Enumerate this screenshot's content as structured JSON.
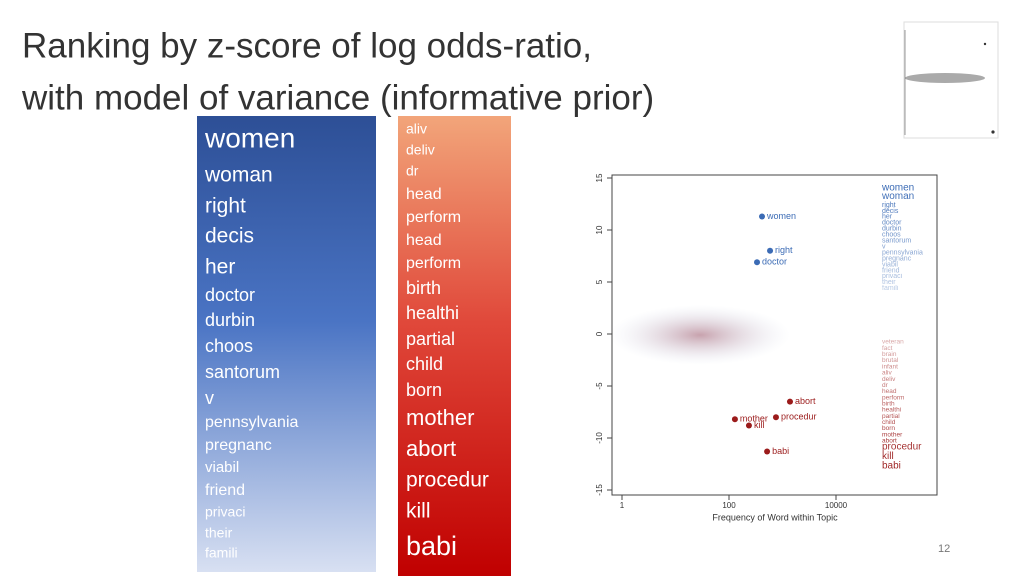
{
  "slide": {
    "title_lines": [
      "Ranking by z-score of log odds-ratio,",
      "with model of variance (informative prior)"
    ],
    "columns": [
      {
        "words": [
          "women",
          "woman",
          "right",
          "decis",
          "her",
          "doctor",
          "durbin",
          "choos",
          "santorum",
          "v",
          "pennsylvania",
          "pregnanc",
          "viabil",
          "friend",
          "privaci",
          "their",
          "famili"
        ]
      },
      {
        "words": [
          "aliv",
          "deliv",
          "dr",
          "head",
          "perform",
          "head",
          "perform",
          "birth",
          "healthi",
          "partial",
          "child",
          "born",
          "mother",
          "abort",
          "procedur",
          "kill",
          "babi"
        ]
      }
    ],
    "plot": {
      "x_label": "Frequency of Word within Topic",
      "xticks": [
        1,
        100,
        10000
      ],
      "yticks": [
        15,
        10,
        5,
        0,
        -5,
        -10,
        -15
      ],
      "points": [
        {
          "label": "women",
          "x": 414,
          "y": 11.3,
          "color": "#3b6bb5"
        },
        {
          "label": "right",
          "x": 585,
          "y": 8,
          "color": "#3b6bb5"
        },
        {
          "label": "doctor",
          "x": 334,
          "y": 6.9,
          "color": "#3b6bb5"
        },
        {
          "label": "mother",
          "x": 129,
          "y": -8.2,
          "color": "#9b1b1b"
        },
        {
          "label": "abort",
          "x": 1380,
          "y": -6.5,
          "color": "#9b1b1b"
        },
        {
          "label": "procedur",
          "x": 755,
          "y": -8,
          "color": "#9b1b1b"
        },
        {
          "label": "kill",
          "x": 236,
          "y": -8.8,
          "color": "#9b1b1b"
        },
        {
          "label": "babi",
          "x": 515,
          "y": -11.3,
          "color": "#9b1b1b"
        }
      ],
      "legend_blue": [
        "women",
        "woman",
        "right",
        "decis",
        "her",
        "doctor",
        "durbin",
        "choos",
        "santorum",
        "v",
        "pennsylvania",
        "pregnanc",
        "viabil",
        "friend",
        "privaci",
        "their",
        "famili"
      ],
      "legend_red": [
        "veteran",
        "fact",
        "brain",
        "brutal",
        "infant",
        "aliv",
        "deliv",
        "dr",
        "head",
        "perform",
        "birth",
        "healthi",
        "partial",
        "child",
        "born",
        "mother",
        "abort",
        "procedur",
        "kill",
        "babi"
      ]
    },
    "page_number": "12"
  }
}
